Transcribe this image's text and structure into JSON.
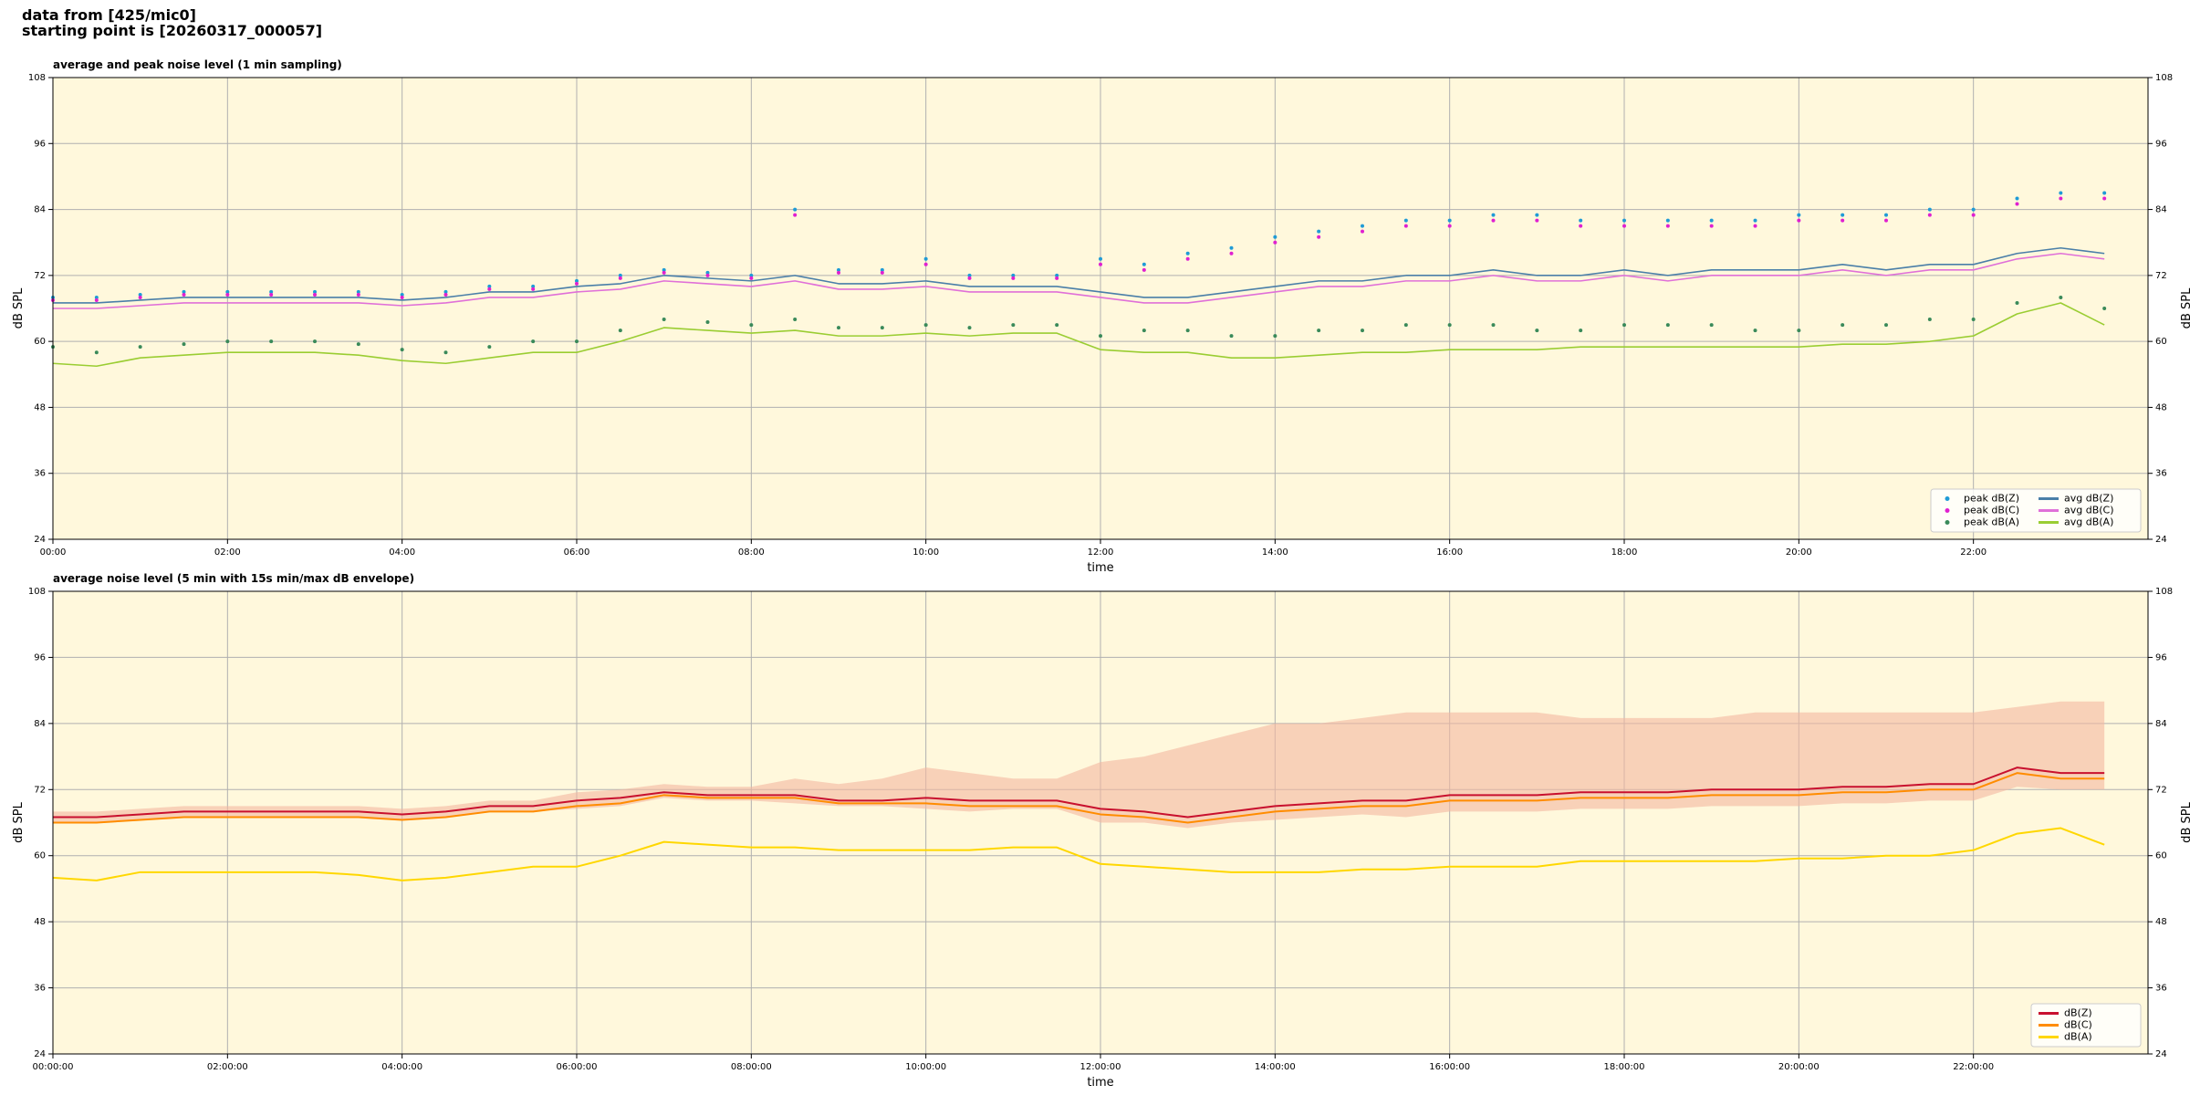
{
  "header": {
    "lines": [
      "data from [425/mic0]",
      "starting point is [20260317_000057]"
    ]
  },
  "chart_data": [
    {
      "type": "line",
      "title": "average and peak noise level (1 min sampling)",
      "xlabel": "time",
      "ylabel": "dB SPL",
      "background": "#fff8dc",
      "grid": true,
      "legend": "lower right",
      "legend_columns": 2,
      "xlim": [
        0,
        24
      ],
      "ylim": [
        24,
        108
      ],
      "xticks": [
        {
          "value": 0,
          "label": "00:00"
        },
        {
          "value": 2,
          "label": "02:00"
        },
        {
          "value": 4,
          "label": "04:00"
        },
        {
          "value": 6,
          "label": "06:00"
        },
        {
          "value": 8,
          "label": "08:00"
        },
        {
          "value": 10,
          "label": "10:00"
        },
        {
          "value": 12,
          "label": "12:00"
        },
        {
          "value": 14,
          "label": "14:00"
        },
        {
          "value": 16,
          "label": "16:00"
        },
        {
          "value": 18,
          "label": "18:00"
        },
        {
          "value": 20,
          "label": "20:00"
        },
        {
          "value": 22,
          "label": "22:00"
        }
      ],
      "yticks": [
        24,
        36,
        48,
        60,
        72,
        84,
        96,
        108
      ],
      "x": [
        0,
        0.5,
        1,
        1.5,
        2,
        2.5,
        3,
        3.5,
        4,
        4.5,
        5,
        5.5,
        6,
        6.5,
        7,
        7.5,
        8,
        8.5,
        9,
        9.5,
        10,
        10.5,
        11,
        11.5,
        12,
        12.5,
        13,
        13.5,
        14,
        14.5,
        15,
        15.5,
        16,
        16.5,
        17,
        17.5,
        18,
        18.5,
        19,
        19.5,
        20,
        20.5,
        21,
        21.5,
        22,
        22.5,
        23,
        23.5
      ],
      "series": [
        {
          "name": "peak dB(Z)",
          "style": "scatter",
          "color": "#1f9bd6",
          "values": [
            68,
            68,
            68.5,
            69,
            69,
            69,
            69,
            69,
            68.5,
            69,
            70,
            70,
            71,
            72,
            73,
            72.5,
            72,
            84,
            73,
            73,
            75,
            72,
            72,
            72,
            75,
            74,
            76,
            77,
            79,
            80,
            81,
            82,
            82,
            83,
            83,
            82,
            82,
            82,
            82,
            82,
            83,
            83,
            83,
            84,
            84,
            86,
            87,
            87
          ]
        },
        {
          "name": "peak dB(C)",
          "style": "scatter",
          "color": "#e020d0",
          "values": [
            67.5,
            67.5,
            68,
            68.5,
            68.5,
            68.5,
            68.5,
            68.5,
            68,
            68.5,
            69.5,
            69.5,
            70.5,
            71.5,
            72.5,
            72,
            71.5,
            83,
            72.5,
            72.5,
            74,
            71.5,
            71.5,
            71.5,
            74,
            73,
            75,
            76,
            78,
            79,
            80,
            81,
            81,
            82,
            82,
            81,
            81,
            81,
            81,
            81,
            82,
            82,
            82,
            83,
            83,
            85,
            86,
            86
          ]
        },
        {
          "name": "peak dB(A)",
          "style": "scatter",
          "color": "#3a8a5a",
          "values": [
            59,
            58,
            59,
            59.5,
            60,
            60,
            60,
            59.5,
            58.5,
            58,
            59,
            60,
            60,
            62,
            64,
            63.5,
            63,
            64,
            62.5,
            62.5,
            63,
            62.5,
            63,
            63,
            61,
            62,
            62,
            61,
            61,
            62,
            62,
            63,
            63,
            63,
            62,
            62,
            63,
            63,
            63,
            62,
            62,
            63,
            63,
            64,
            64,
            67,
            68,
            66
          ]
        },
        {
          "name": "avg dB(Z)",
          "style": "line",
          "color": "#4a7fa8",
          "values": [
            67,
            67,
            67.5,
            68,
            68,
            68,
            68,
            68,
            67.5,
            68,
            69,
            69,
            70,
            70.5,
            72,
            71.5,
            71,
            72,
            70.5,
            70.5,
            71,
            70,
            70,
            70,
            69,
            68,
            68,
            69,
            70,
            71,
            71,
            72,
            72,
            73,
            72,
            72,
            73,
            72,
            73,
            73,
            73,
            74,
            73,
            74,
            74,
            76,
            77,
            76
          ]
        },
        {
          "name": "avg dB(C)",
          "style": "line",
          "color": "#e070d8",
          "values": [
            66,
            66,
            66.5,
            67,
            67,
            67,
            67,
            67,
            66.5,
            67,
            68,
            68,
            69,
            69.5,
            71,
            70.5,
            70,
            71,
            69.5,
            69.5,
            70,
            69,
            69,
            69,
            68,
            67,
            67,
            68,
            69,
            70,
            70,
            71,
            71,
            72,
            71,
            71,
            72,
            71,
            72,
            72,
            72,
            73,
            72,
            73,
            73,
            75,
            76,
            75
          ]
        },
        {
          "name": "avg dB(A)",
          "style": "line",
          "color": "#9acd32",
          "values": [
            56,
            55.5,
            57,
            57.5,
            58,
            58,
            58,
            57.5,
            56.5,
            56,
            57,
            58,
            58,
            60,
            62.5,
            62,
            61.5,
            62,
            61,
            61,
            61.5,
            61,
            61.5,
            61.5,
            58.5,
            58,
            58,
            57,
            57,
            57.5,
            58,
            58,
            58.5,
            58.5,
            58.5,
            59,
            59,
            59,
            59,
            59,
            59,
            59.5,
            59.5,
            60,
            61,
            65,
            67,
            63
          ]
        }
      ]
    },
    {
      "type": "line",
      "title": "average noise level (5 min with 15s min/max dB envelope)",
      "xlabel": "time",
      "ylabel": "dB SPL",
      "background": "#fff8dc",
      "grid": true,
      "legend": "lower right",
      "legend_columns": 1,
      "xlim": [
        0,
        24
      ],
      "ylim": [
        24,
        108
      ],
      "xticks": [
        {
          "value": 0,
          "label": "00:00:00"
        },
        {
          "value": 2,
          "label": "02:00:00"
        },
        {
          "value": 4,
          "label": "04:00:00"
        },
        {
          "value": 6,
          "label": "06:00:00"
        },
        {
          "value": 8,
          "label": "08:00:00"
        },
        {
          "value": 10,
          "label": "10:00:00"
        },
        {
          "value": 12,
          "label": "12:00:00"
        },
        {
          "value": 14,
          "label": "14:00:00"
        },
        {
          "value": 16,
          "label": "16:00:00"
        },
        {
          "value": 18,
          "label": "18:00:00"
        },
        {
          "value": 20,
          "label": "20:00:00"
        },
        {
          "value": 22,
          "label": "22:00:00"
        }
      ],
      "yticks": [
        24,
        36,
        48,
        60,
        72,
        84,
        96,
        108
      ],
      "x": [
        0,
        0.5,
        1,
        1.5,
        2,
        2.5,
        3,
        3.5,
        4,
        4.5,
        5,
        5.5,
        6,
        6.5,
        7,
        7.5,
        8,
        8.5,
        9,
        9.5,
        10,
        10.5,
        11,
        11.5,
        12,
        12.5,
        13,
        13.5,
        14,
        14.5,
        15,
        15.5,
        16,
        16.5,
        17,
        17.5,
        18,
        18.5,
        19,
        19.5,
        20,
        20.5,
        21,
        21.5,
        22,
        22.5,
        23,
        23.5
      ],
      "envelope": {
        "color": "#f4b8a0",
        "low": [
          66,
          66,
          66.5,
          67,
          67,
          67,
          67,
          67,
          66.5,
          67,
          68,
          68,
          68.5,
          69,
          70.5,
          70,
          70,
          69.5,
          69,
          69,
          68.5,
          68,
          68.5,
          68.5,
          66,
          66,
          65,
          66,
          66.5,
          67,
          67.5,
          67,
          68,
          68,
          68,
          68.5,
          68.5,
          68.5,
          69,
          69,
          69,
          69.5,
          69.5,
          70,
          70,
          72.5,
          72,
          72
        ],
        "high": [
          68,
          68,
          68.5,
          69,
          69,
          69,
          69,
          69,
          68.5,
          69,
          70,
          70,
          71.5,
          72,
          73,
          72.5,
          72.5,
          74,
          73,
          74,
          76,
          75,
          74,
          74,
          77,
          78,
          80,
          82,
          84,
          84,
          85,
          86,
          86,
          86,
          86,
          85,
          85,
          85,
          85,
          86,
          86,
          86,
          86,
          86,
          86,
          87,
          88,
          88
        ]
      },
      "series": [
        {
          "name": "dB(Z)",
          "style": "line",
          "color": "#c8102e",
          "values": [
            67,
            67,
            67.5,
            68,
            68,
            68,
            68,
            68,
            67.5,
            68,
            69,
            69,
            70,
            70.5,
            71.5,
            71,
            71,
            71,
            70,
            70,
            70.5,
            70,
            70,
            70,
            68.5,
            68,
            67,
            68,
            69,
            69.5,
            70,
            70,
            71,
            71,
            71,
            71.5,
            71.5,
            71.5,
            72,
            72,
            72,
            72.5,
            72.5,
            73,
            73,
            76,
            75,
            75
          ]
        },
        {
          "name": "dB(C)",
          "style": "line",
          "color": "#ff8c00",
          "values": [
            66,
            66,
            66.5,
            67,
            67,
            67,
            67,
            67,
            66.5,
            67,
            68,
            68,
            69,
            69.5,
            71,
            70.5,
            70.5,
            70.5,
            69.5,
            69.5,
            69.5,
            69,
            69,
            69,
            67.5,
            67,
            66,
            67,
            68,
            68.5,
            69,
            69,
            70,
            70,
            70,
            70.5,
            70.5,
            70.5,
            71,
            71,
            71,
            71.5,
            71.5,
            72,
            72,
            75,
            74,
            74
          ]
        },
        {
          "name": "dB(A)",
          "style": "line",
          "color": "#ffd700",
          "values": [
            56,
            55.5,
            57,
            57,
            57,
            57,
            57,
            56.5,
            55.5,
            56,
            57,
            58,
            58,
            60,
            62.5,
            62,
            61.5,
            61.5,
            61,
            61,
            61,
            61,
            61.5,
            61.5,
            58.5,
            58,
            57.5,
            57,
            57,
            57,
            57.5,
            57.5,
            58,
            58,
            58,
            59,
            59,
            59,
            59,
            59,
            59.5,
            59.5,
            60,
            60,
            61,
            64,
            65,
            62
          ]
        }
      ]
    }
  ]
}
